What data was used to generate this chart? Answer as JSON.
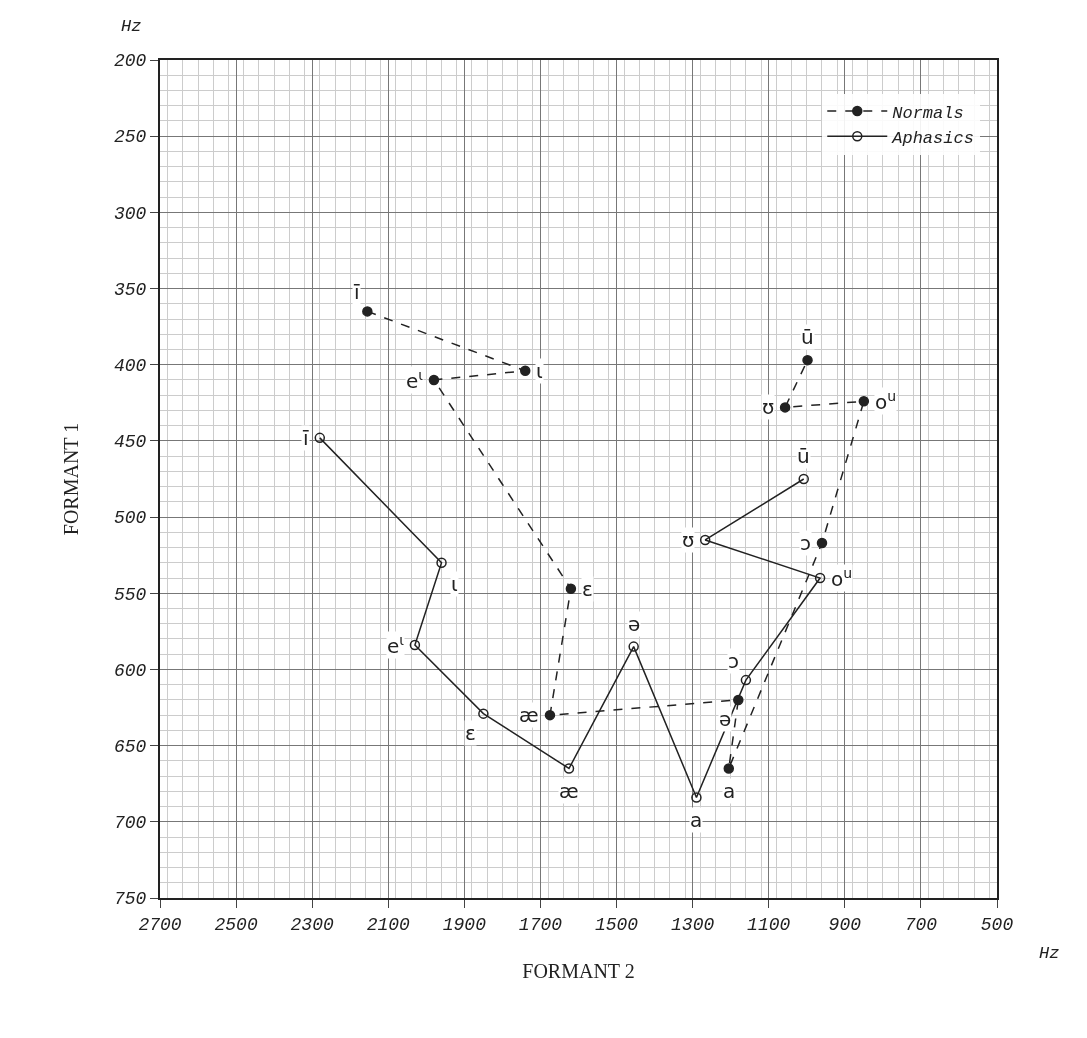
{
  "chart_data": {
    "type": "line",
    "xlabel": "FORMANT 2",
    "ylabel": "FORMANT 1",
    "xlim": [
      2700,
      500
    ],
    "xticks": [
      2700,
      2500,
      2300,
      2100,
      1900,
      1700,
      1500,
      1300,
      1100,
      900,
      700,
      500
    ],
    "ylim": [
      750,
      200
    ],
    "yticks": [
      200,
      250,
      300,
      350,
      400,
      450,
      500,
      550,
      600,
      650,
      700,
      750
    ],
    "grid": true,
    "legend": "top right",
    "marker": "circle",
    "series": [
      {
        "name": "Normals",
        "color": "#222222",
        "line_style": "dashed",
        "x": [
          2155,
          1740,
          1980,
          1620,
          1675,
          1180,
          1205,
          960,
          850,
          1057,
          998
        ],
        "values": [
          365,
          404,
          410,
          547,
          630,
          620,
          665,
          517,
          424,
          428,
          397
        ]
      },
      {
        "name": "Aphasics",
        "color": "#222222",
        "line_style": "solid",
        "x": [
          2280,
          1960,
          2030,
          1850,
          1625,
          1455,
          1290,
          1160,
          965,
          1267,
          1008
        ],
        "values": [
          448,
          530,
          584,
          629,
          665,
          585,
          684,
          607,
          540,
          515,
          475
        ]
      }
    ],
    "annotations": [
      "Hz",
      "Hz",
      {
        "text": "ī",
        "x": 2155,
        "y": 365
      },
      {
        "text": "ɩ",
        "x": 1740,
        "y": 404
      },
      {
        "text": "e$^{ɩ}$",
        "x": 1980,
        "y": 410
      },
      {
        "text": "ɛ",
        "x": 1620,
        "y": 547
      },
      {
        "text": "æ",
        "x": 1675,
        "y": 630
      },
      {
        "text": "ə",
        "x": 1180,
        "y": 620
      },
      {
        "text": "a",
        "x": 1205,
        "y": 665
      },
      {
        "text": "ɔ",
        "x": 960,
        "y": 517
      },
      {
        "text": "o$^{u}$",
        "x": 850,
        "y": 424
      },
      {
        "text": "ʊ",
        "x": 1057,
        "y": 428
      },
      {
        "text": "ū",
        "x": 998,
        "y": 397
      },
      {
        "text": "ī",
        "x": 2280,
        "y": 448
      },
      {
        "text": "ɩ",
        "x": 1960,
        "y": 530
      },
      {
        "text": "e$^{ɩ}$",
        "x": 2030,
        "y": 584
      },
      {
        "text": "ɛ",
        "x": 1850,
        "y": 629
      },
      {
        "text": "æ",
        "x": 1625,
        "y": 665
      },
      {
        "text": "ə",
        "x": 1455,
        "y": 585
      },
      {
        "text": "a",
        "x": 1290,
        "y": 684
      },
      {
        "text": "ɔ",
        "x": 1160,
        "y": 607
      },
      {
        "text": "o$^{u}$",
        "x": 965,
        "y": 540
      },
      {
        "text": "ʊ",
        "x": 1267,
        "y": 515
      },
      {
        "text": "ū",
        "x": 1008,
        "y": 475
      }
    ]
  }
}
